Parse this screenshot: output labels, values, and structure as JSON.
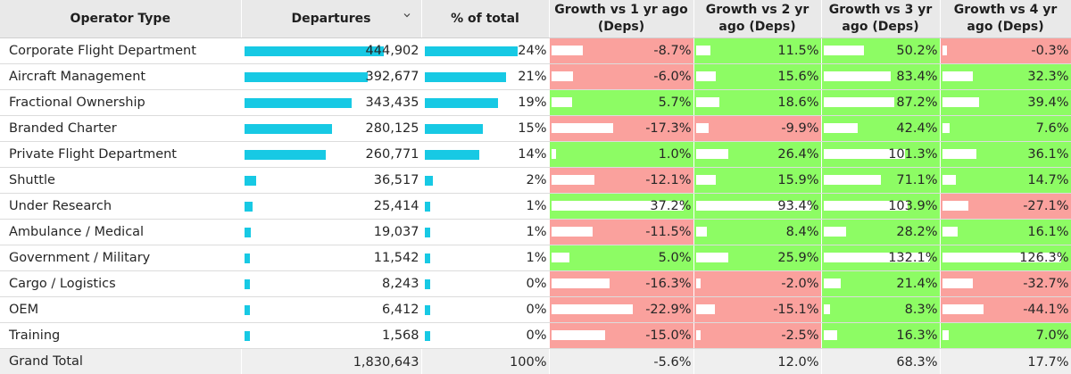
{
  "headers": {
    "operator_type": "Operator Type",
    "departures": "Departures",
    "pct_total": "% of total",
    "growth1": "Growth vs 1 yr ago (Deps)",
    "growth2": "Growth vs 2 yr ago (Deps)",
    "growth3": "Growth vs 3 yr ago (Deps)",
    "growth4": "Growth vs 4 yr ago (Deps)"
  },
  "sort_icon": "chevron-down-icon",
  "colors": {
    "bar": "#17c9e4",
    "positive": "#8dfc64",
    "negative": "#faa19d"
  },
  "rows": [
    {
      "type": "Corporate Flight Department",
      "departures": "444,902",
      "dep_value": 444902,
      "pct": "24%",
      "pct_value": 24,
      "g1": "-8.7%",
      "g1v": -8.7,
      "g2": "11.5%",
      "g2v": 11.5,
      "g3": "50.2%",
      "g3v": 50.2,
      "g4": "-0.3%",
      "g4v": -0.3
    },
    {
      "type": "Aircraft Management",
      "departures": "392,677",
      "dep_value": 392677,
      "pct": "21%",
      "pct_value": 21,
      "g1": "-6.0%",
      "g1v": -6.0,
      "g2": "15.6%",
      "g2v": 15.6,
      "g3": "83.4%",
      "g3v": 83.4,
      "g4": "32.3%",
      "g4v": 32.3
    },
    {
      "type": "Fractional Ownership",
      "departures": "343,435",
      "dep_value": 343435,
      "pct": "19%",
      "pct_value": 19,
      "g1": "5.7%",
      "g1v": 5.7,
      "g2": "18.6%",
      "g2v": 18.6,
      "g3": "87.2%",
      "g3v": 87.2,
      "g4": "39.4%",
      "g4v": 39.4
    },
    {
      "type": "Branded Charter",
      "departures": "280,125",
      "dep_value": 280125,
      "pct": "15%",
      "pct_value": 15,
      "g1": "-17.3%",
      "g1v": -17.3,
      "g2": "-9.9%",
      "g2v": -9.9,
      "g3": "42.4%",
      "g3v": 42.4,
      "g4": "7.6%",
      "g4v": 7.6
    },
    {
      "type": "Private Flight Department",
      "departures": "260,771",
      "dep_value": 260771,
      "pct": "14%",
      "pct_value": 14,
      "g1": "1.0%",
      "g1v": 1.0,
      "g2": "26.4%",
      "g2v": 26.4,
      "g3": "101.3%",
      "g3v": 101.3,
      "g4": "36.1%",
      "g4v": 36.1
    },
    {
      "type": "Shuttle",
      "departures": "36,517",
      "dep_value": 36517,
      "pct": "2%",
      "pct_value": 2,
      "g1": "-12.1%",
      "g1v": -12.1,
      "g2": "15.9%",
      "g2v": 15.9,
      "g3": "71.1%",
      "g3v": 71.1,
      "g4": "14.7%",
      "g4v": 14.7
    },
    {
      "type": "Under Research",
      "departures": "25,414",
      "dep_value": 25414,
      "pct": "1%",
      "pct_value": 1,
      "g1": "37.2%",
      "g1v": 37.2,
      "g2": "93.4%",
      "g2v": 93.4,
      "g3": "103.9%",
      "g3v": 103.9,
      "g4": "-27.1%",
      "g4v": -27.1
    },
    {
      "type": "Ambulance / Medical",
      "departures": "19,037",
      "dep_value": 19037,
      "pct": "1%",
      "pct_value": 1,
      "g1": "-11.5%",
      "g1v": -11.5,
      "g2": "8.4%",
      "g2v": 8.4,
      "g3": "28.2%",
      "g3v": 28.2,
      "g4": "16.1%",
      "g4v": 16.1
    },
    {
      "type": "Government / Military",
      "departures": "11,542",
      "dep_value": 11542,
      "pct": "1%",
      "pct_value": 1,
      "g1": "5.0%",
      "g1v": 5.0,
      "g2": "25.9%",
      "g2v": 25.9,
      "g3": "132.1%",
      "g3v": 132.1,
      "g4": "126.3%",
      "g4v": 126.3
    },
    {
      "type": "Cargo / Logistics",
      "departures": "8,243",
      "dep_value": 8243,
      "pct": "0%",
      "pct_value": 0,
      "g1": "-16.3%",
      "g1v": -16.3,
      "g2": "-2.0%",
      "g2v": -2.0,
      "g3": "21.4%",
      "g3v": 21.4,
      "g4": "-32.7%",
      "g4v": -32.7
    },
    {
      "type": "OEM",
      "departures": "6,412",
      "dep_value": 6412,
      "pct": "0%",
      "pct_value": 0,
      "g1": "-22.9%",
      "g1v": -22.9,
      "g2": "-15.1%",
      "g2v": -15.1,
      "g3": "8.3%",
      "g3v": 8.3,
      "g4": "-44.1%",
      "g4v": -44.1
    },
    {
      "type": "Training",
      "departures": "1,568",
      "dep_value": 1568,
      "pct": "0%",
      "pct_value": 0,
      "g1": "-15.0%",
      "g1v": -15.0,
      "g2": "-2.5%",
      "g2v": -2.5,
      "g3": "16.3%",
      "g3v": 16.3,
      "g4": "7.0%",
      "g4v": 7.0
    }
  ],
  "total": {
    "type": "Grand Total",
    "departures": "1,830,643",
    "pct": "100%",
    "g1": "-5.6%",
    "g2": "12.0%",
    "g3": "68.3%",
    "g4": "17.7%"
  }
}
